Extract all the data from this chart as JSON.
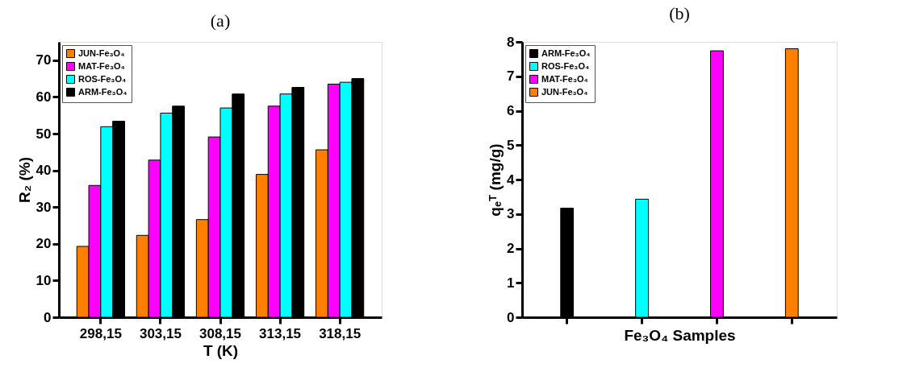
{
  "chart_data": [
    {
      "type": "bar",
      "title": "(a)",
      "xlabel": "T (K)",
      "ylabel": "R₂ (%)",
      "categories": [
        "298,15",
        "303,15",
        "308,15",
        "313,15",
        "318,15"
      ],
      "ylim": [
        0,
        75
      ],
      "yticks": [
        0,
        10,
        20,
        30,
        40,
        50,
        60,
        70
      ],
      "grid": false,
      "legend": "top left",
      "series": [
        {
          "name": "JUN-Fe₃O₄",
          "color": "#ff8000",
          "values": [
            19.3,
            22.3,
            26.6,
            38.9,
            45.6
          ]
        },
        {
          "name": "MAT-Fe₃O₄",
          "color": "#ff00ff",
          "values": [
            35.9,
            42.8,
            49.1,
            57.5,
            63.5
          ]
        },
        {
          "name": "ROS-Fe₃O₄",
          "color": "#00ffff",
          "values": [
            51.9,
            55.6,
            57.0,
            60.8,
            64.0
          ]
        },
        {
          "name": "ARM-Fe₃O₄",
          "color": "#000000",
          "values": [
            53.4,
            57.5,
            60.8,
            62.6,
            65.0
          ]
        }
      ]
    },
    {
      "type": "bar",
      "title": "(b)",
      "xlabel": "Fe₃O₄ Samples",
      "ylabel": "qₑᵀ (mg/g)",
      "categories": [
        null,
        null,
        null,
        null
      ],
      "ylim": [
        0,
        8
      ],
      "yticks": [
        0,
        1,
        2,
        3,
        4,
        5,
        6,
        7,
        8
      ],
      "grid": false,
      "legend": "top left",
      "tick_labels": "y",
      "series": [
        {
          "name": "ARM-Fe₃O₄",
          "color": "#000000",
          "values": [
            3.17,
            null,
            null,
            null
          ]
        },
        {
          "name": "ROS-Fe₃O₄",
          "color": "#00ffff",
          "values": [
            null,
            3.43,
            null,
            null
          ]
        },
        {
          "name": "MAT-Fe₃O₄",
          "color": "#ff00ff",
          "values": [
            null,
            null,
            7.74,
            null
          ]
        },
        {
          "name": "JUN-Fe₃O₄",
          "color": "#ff8000",
          "values": [
            null,
            null,
            null,
            7.8
          ]
        }
      ]
    }
  ]
}
